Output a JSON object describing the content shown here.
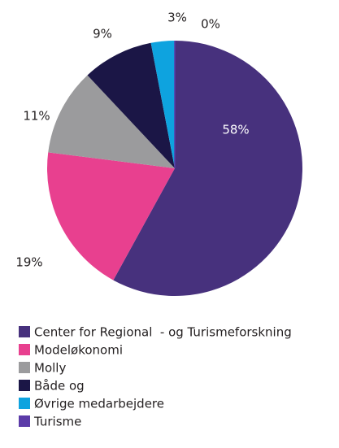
{
  "chart_data": {
    "type": "pie",
    "categories": [
      "Center for Regional  - og Turismeforskning",
      "Modeløkonomi",
      "Molly",
      "Både og",
      "Øvrige medarbejdere",
      "Turisme"
    ],
    "values": [
      58,
      19,
      11,
      9,
      3,
      0
    ],
    "value_labels": [
      "58%",
      "19%",
      "11%",
      "9%",
      "3%",
      "0%"
    ],
    "colors": [
      "#47317d",
      "#e8408f",
      "#9b9b9d",
      "#1b1646",
      "#0ea3df",
      "#5b3ba8"
    ],
    "legend": "bottom"
  }
}
